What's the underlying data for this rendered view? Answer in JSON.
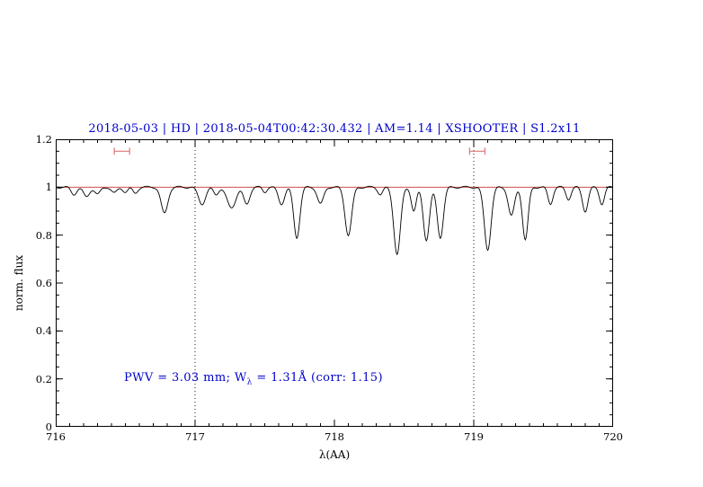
{
  "title": "2018-05-03 | HD | 2018-05-04T00:42:30.432 | AM=1.14 | XSHOOTER | S1.2x11",
  "annotation": {
    "prefix": "PWV = 3.03 mm; W",
    "sub": "λ",
    "suffix": " = 1.31Å (corr: 1.15)"
  },
  "colors": {
    "title": "#0000cc",
    "annotation": "#0000cc",
    "spectrum": "#000000",
    "continuum": "#cc3333",
    "marker": "#dd7777",
    "vline": "#000000"
  },
  "chart_data": {
    "type": "line",
    "title": "2018-05-03 | HD | 2018-05-04T00:42:30.432 | AM=1.14 | XSHOOTER | S1.2x11",
    "xlabel": "λ(AA)",
    "ylabel": "norm. flux",
    "xlim": [
      716,
      720
    ],
    "ylim": [
      0,
      1.2
    ],
    "xticks": [
      716,
      717,
      718,
      719,
      720
    ],
    "xtick_labels": [
      "716",
      "717",
      "718",
      "719",
      "720"
    ],
    "yticks": [
      0,
      0.2,
      0.4,
      0.6,
      0.8,
      1,
      1.2
    ],
    "ytick_labels": [
      "0",
      "0.2",
      "0.4",
      "0.6",
      "0.8",
      "1",
      "1.2"
    ],
    "x_minor_step": 0.1,
    "y_minor_step": 0.05,
    "grid": false,
    "vlines_dotted": [
      717,
      719
    ],
    "continuum_level": 1.0,
    "range_markers": [
      {
        "x1": 716.42,
        "x2": 716.53,
        "y": 1.15
      },
      {
        "x1": 718.97,
        "x2": 719.08,
        "y": 1.15
      }
    ],
    "pwv_mm": 3.03,
    "equivalent_width_A": 1.31,
    "correction_factor": 1.15,
    "airmass": 1.14,
    "instrument": "XSHOOTER",
    "slit": "S1.2x11",
    "absorption_lines": [
      {
        "center": 716.13,
        "depth": 0.03,
        "sigma": 0.02
      },
      {
        "center": 716.22,
        "depth": 0.04,
        "sigma": 0.022
      },
      {
        "center": 716.3,
        "depth": 0.03,
        "sigma": 0.02
      },
      {
        "center": 716.42,
        "depth": 0.025,
        "sigma": 0.02
      },
      {
        "center": 716.5,
        "depth": 0.02,
        "sigma": 0.018
      },
      {
        "center": 716.57,
        "depth": 0.025,
        "sigma": 0.018
      },
      {
        "center": 716.78,
        "depth": 0.11,
        "sigma": 0.024
      },
      {
        "center": 717.05,
        "depth": 0.07,
        "sigma": 0.026
      },
      {
        "center": 717.15,
        "depth": 0.03,
        "sigma": 0.018
      },
      {
        "center": 717.26,
        "depth": 0.085,
        "sigma": 0.032
      },
      {
        "center": 717.37,
        "depth": 0.07,
        "sigma": 0.022
      },
      {
        "center": 717.5,
        "depth": 0.02,
        "sigma": 0.015
      },
      {
        "center": 717.62,
        "depth": 0.07,
        "sigma": 0.022
      },
      {
        "center": 717.73,
        "depth": 0.21,
        "sigma": 0.022
      },
      {
        "center": 717.9,
        "depth": 0.07,
        "sigma": 0.022
      },
      {
        "center": 718.1,
        "depth": 0.2,
        "sigma": 0.024
      },
      {
        "center": 718.33,
        "depth": 0.03,
        "sigma": 0.018
      },
      {
        "center": 718.45,
        "depth": 0.28,
        "sigma": 0.024
      },
      {
        "center": 718.57,
        "depth": 0.1,
        "sigma": 0.018
      },
      {
        "center": 718.66,
        "depth": 0.22,
        "sigma": 0.022
      },
      {
        "center": 718.76,
        "depth": 0.21,
        "sigma": 0.022
      },
      {
        "center": 719.1,
        "depth": 0.26,
        "sigma": 0.024
      },
      {
        "center": 719.27,
        "depth": 0.12,
        "sigma": 0.022
      },
      {
        "center": 719.37,
        "depth": 0.22,
        "sigma": 0.02
      },
      {
        "center": 719.55,
        "depth": 0.07,
        "sigma": 0.018
      },
      {
        "center": 719.68,
        "depth": 0.05,
        "sigma": 0.018
      },
      {
        "center": 719.8,
        "depth": 0.1,
        "sigma": 0.02
      },
      {
        "center": 719.92,
        "depth": 0.07,
        "sigma": 0.018
      }
    ]
  }
}
